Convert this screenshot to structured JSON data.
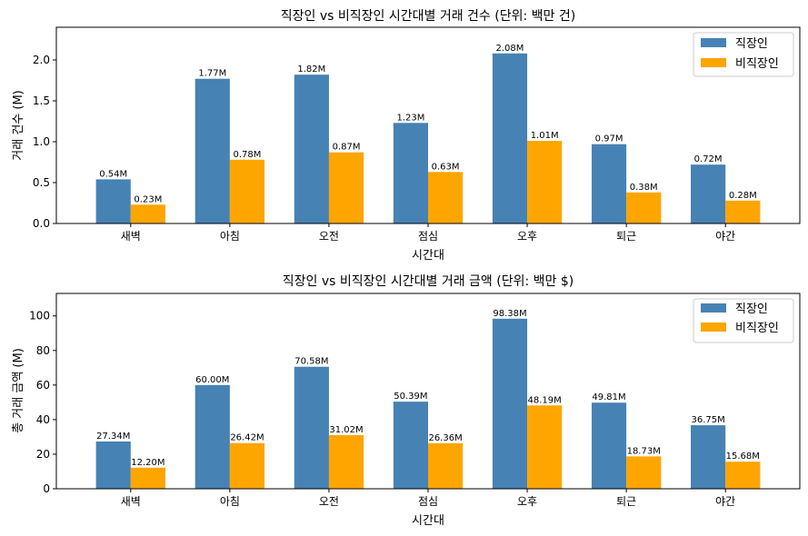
{
  "colors": {
    "worker": "#4682b4",
    "nonworker": "#ffa500"
  },
  "chart_data": [
    {
      "type": "bar",
      "title": "직장인 vs 비직장인 시간대별 거래 건수 (단위: 백만 건)",
      "xlabel": "시간대",
      "ylabel": "거래 건수 (M)",
      "categories": [
        "새벽",
        "아침",
        "오전",
        "점심",
        "오후",
        "퇴근",
        "야간"
      ],
      "ylim": [
        0,
        2.4
      ],
      "yticks": [
        0.0,
        0.5,
        1.0,
        1.5,
        2.0
      ],
      "ytick_labels": [
        "0.0",
        "0.5",
        "1.0",
        "1.5",
        "2.0"
      ],
      "legend_position": "top-right",
      "series": [
        {
          "name": "직장인",
          "values": [
            0.54,
            1.77,
            1.82,
            1.23,
            2.08,
            0.97,
            0.72
          ],
          "labels": [
            "0.54M",
            "1.77M",
            "1.82M",
            "1.23M",
            "2.08M",
            "0.97M",
            "0.72M"
          ]
        },
        {
          "name": "비직장인",
          "values": [
            0.23,
            0.78,
            0.87,
            0.63,
            1.01,
            0.38,
            0.28
          ],
          "labels": [
            "0.23M",
            "0.78M",
            "0.87M",
            "0.63M",
            "1.01M",
            "0.38M",
            "0.28M"
          ]
        }
      ]
    },
    {
      "type": "bar",
      "title": "직장인 vs 비직장인 시간대별 거래 금액 (단위: 백만 $)",
      "xlabel": "시간대",
      "ylabel": "총 거래 금액 (M)",
      "categories": [
        "새벽",
        "아침",
        "오전",
        "점심",
        "오후",
        "퇴근",
        "야간"
      ],
      "ylim": [
        0,
        113
      ],
      "yticks": [
        0,
        20,
        40,
        60,
        80,
        100
      ],
      "ytick_labels": [
        "0",
        "20",
        "40",
        "60",
        "80",
        "100"
      ],
      "legend_position": "top-right",
      "series": [
        {
          "name": "직장인",
          "values": [
            27.34,
            60.0,
            70.58,
            50.39,
            98.38,
            49.81,
            36.75
          ],
          "labels": [
            "27.34M",
            "60.00M",
            "70.58M",
            "50.39M",
            "98.38M",
            "49.81M",
            "36.75M"
          ]
        },
        {
          "name": "비직장인",
          "values": [
            12.2,
            26.42,
            31.02,
            26.36,
            48.19,
            18.73,
            15.68
          ],
          "labels": [
            "12.20M",
            "26.42M",
            "31.02M",
            "26.36M",
            "48.19M",
            "18.73M",
            "15.68M"
          ]
        }
      ]
    }
  ]
}
